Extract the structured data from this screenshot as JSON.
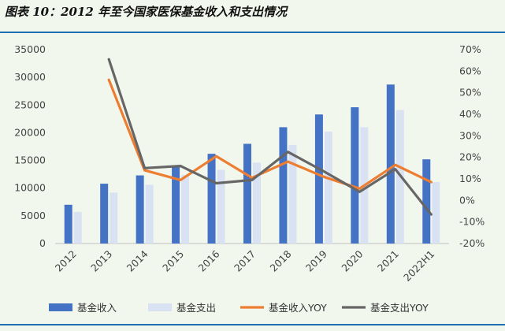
{
  "header": {
    "title": "图表 10：2012 年至今国家医保基金收入和支出情况"
  },
  "chart_data": {
    "type": "bar",
    "title": "图表 10：2012 年至今国家医保基金收入和支出情况",
    "categories": [
      "2012",
      "2013",
      "2014",
      "2015",
      "2016",
      "2017",
      "2018",
      "2019",
      "2020",
      "2021",
      "2022H1"
    ],
    "series": [
      {
        "name": "基金收入",
        "type": "bar",
        "axis": "left",
        "color": "#4472c4",
        "values": [
          7000,
          10800,
          12300,
          13900,
          16200,
          18000,
          21000,
          23300,
          24600,
          28700,
          15200
        ]
      },
      {
        "name": "基金支出",
        "type": "bar",
        "axis": "left",
        "color": "#d9e2f3",
        "values": [
          5700,
          9200,
          10600,
          12400,
          13300,
          14600,
          17800,
          20200,
          21000,
          24100,
          11100
        ]
      },
      {
        "name": "基金收入YOY",
        "type": "line",
        "axis": "right",
        "color": "#ed7d31",
        "values": [
          null,
          0.56,
          0.14,
          0.095,
          0.205,
          0.105,
          0.18,
          0.11,
          0.055,
          0.165,
          0.085
        ]
      },
      {
        "name": "基金支出YOY",
        "type": "line",
        "axis": "right",
        "color": "#666666",
        "values": [
          null,
          0.655,
          0.15,
          0.16,
          0.08,
          0.095,
          0.225,
          0.135,
          0.04,
          0.145,
          -0.065
        ]
      }
    ],
    "y_left": {
      "ticks": [
        "0",
        "5000",
        "10000",
        "15000",
        "20000",
        "25000",
        "30000",
        "35000"
      ],
      "ylim": [
        0,
        35000
      ]
    },
    "y_right": {
      "ticks": [
        "-20%",
        "-10%",
        "0%",
        "10%",
        "20%",
        "30%",
        "40%",
        "50%",
        "60%",
        "70%"
      ],
      "ylim": [
        -0.2,
        0.7
      ]
    },
    "legend_position": "bottom",
    "grid": false
  }
}
